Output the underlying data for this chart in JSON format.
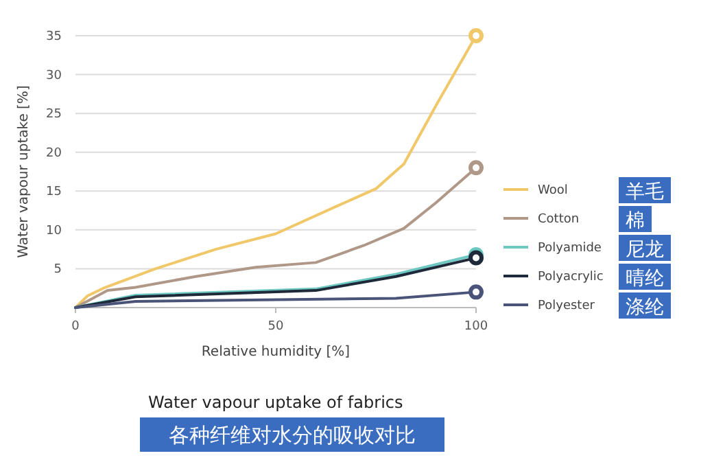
{
  "chart_data": {
    "type": "line",
    "title": "Water vapour uptake of fabrics",
    "subtitle": "各种纤维对水分的吸收对比",
    "xlabel": "Relative humidity [%]",
    "ylabel": "Water vapour uptake [%]",
    "xlim": [
      0,
      100
    ],
    "xticks": [
      0,
      50,
      100
    ],
    "ylim": [
      0,
      35
    ],
    "yticks": [
      5,
      10,
      15,
      20,
      25,
      30,
      35
    ],
    "grid": "y",
    "legend": "right",
    "line_style": "solid",
    "annotations": [
      "羊毛",
      "棉",
      "尼龙",
      "晴纶",
      "涤纶"
    ],
    "series": [
      {
        "name": "Wool",
        "color": "#f0c86a",
        "x": [
          0,
          3,
          7,
          20,
          35,
          50,
          65,
          75,
          82,
          90,
          100
        ],
        "values": [
          0,
          1.5,
          2.5,
          5,
          7.5,
          9.5,
          13,
          15.3,
          18.5,
          26,
          35
        ]
      },
      {
        "name": "Cotton",
        "color": "#b09888",
        "x": [
          0,
          8,
          15,
          30,
          45,
          60,
          72,
          82,
          90,
          100
        ],
        "values": [
          0,
          2.2,
          2.6,
          4,
          5.2,
          5.8,
          8,
          10.2,
          13.5,
          18
        ]
      },
      {
        "name": "Polyamide",
        "color": "#6cc8c0",
        "x": [
          0,
          15,
          60,
          80,
          100
        ],
        "values": [
          0,
          1.6,
          2.4,
          4.3,
          6.8
        ]
      },
      {
        "name": "Polyacrylic",
        "color": "#1e2a3a",
        "x": [
          0,
          15,
          60,
          80,
          100
        ],
        "values": [
          0,
          1.4,
          2.2,
          4,
          6.4
        ]
      },
      {
        "name": "Polyester",
        "color": "#4a5478",
        "x": [
          0,
          15,
          80,
          100
        ],
        "values": [
          0,
          0.8,
          1.2,
          2
        ]
      }
    ]
  }
}
